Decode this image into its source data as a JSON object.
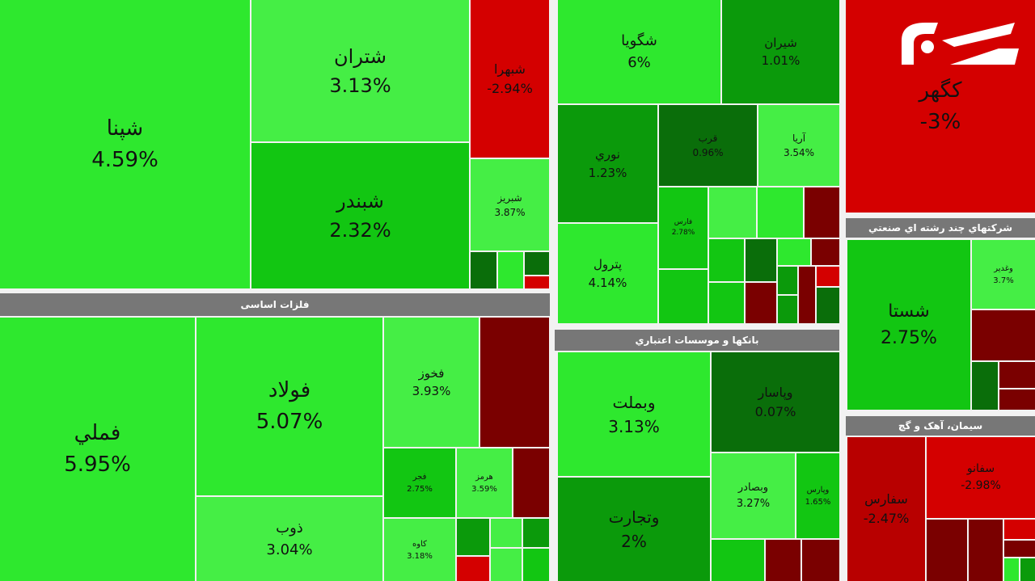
{
  "sections": [
    {
      "tiles": [
        {
          "label": "شپنا",
          "change": "4.59%"
        },
        {
          "label": "شتران",
          "change": "3.13%"
        },
        {
          "label": "شبندر",
          "change": "2.32%"
        },
        {
          "label": "شبهرا",
          "change": "-2.94%"
        },
        {
          "label": "شبریز",
          "change": "3.87%"
        }
      ]
    },
    {
      "header": "فلزات اساسی",
      "tiles": [
        {
          "label": "فملي",
          "change": "5.95%"
        },
        {
          "label": "فولاد",
          "change": "5.07%"
        },
        {
          "label": "ذوب",
          "change": "3.04%"
        },
        {
          "label": "فخوز",
          "change": "3.93%"
        },
        {
          "label": "فجر",
          "change": "2.75%"
        },
        {
          "label": "هرمز",
          "change": "3.59%"
        },
        {
          "label": "کاوه",
          "change": "3.18%"
        }
      ]
    },
    {
      "tiles": [
        {
          "label": "شگویا",
          "change": "6%"
        },
        {
          "label": "شیران",
          "change": "1.01%"
        },
        {
          "label": "نوري",
          "change": "1.23%"
        },
        {
          "label": "قرب",
          "change": "0.96%"
        },
        {
          "label": "آریا",
          "change": "3.54%"
        },
        {
          "label": "پترول",
          "change": "4.14%"
        },
        {
          "label": "فارس",
          "change": "2.78%"
        }
      ]
    },
    {
      "header": "بانکها و موسسات اعتباري",
      "tiles": [
        {
          "label": "وبملت",
          "change": "3.13%"
        },
        {
          "label": "وتجارت",
          "change": "2%"
        },
        {
          "label": "وپاسار",
          "change": "0.07%"
        },
        {
          "label": "وبصادر",
          "change": "3.27%"
        },
        {
          "label": "وپارس",
          "change": "1.65%"
        }
      ]
    },
    {
      "tiles": [
        {
          "label": "كگهر",
          "change": "-3%"
        }
      ]
    },
    {
      "header": "شرکتهاي چند رشته اي صنعتي",
      "tiles": [
        {
          "label": "شستا",
          "change": "2.75%"
        },
        {
          "label": "وغدير",
          "change": "3.7%"
        }
      ]
    },
    {
      "header": "سیمان، آهک و گچ",
      "tiles": [
        {
          "label": "سفارس",
          "change": "-2.47%"
        },
        {
          "label": "سفانو",
          "change": "-2.98%"
        }
      ]
    }
  ]
}
